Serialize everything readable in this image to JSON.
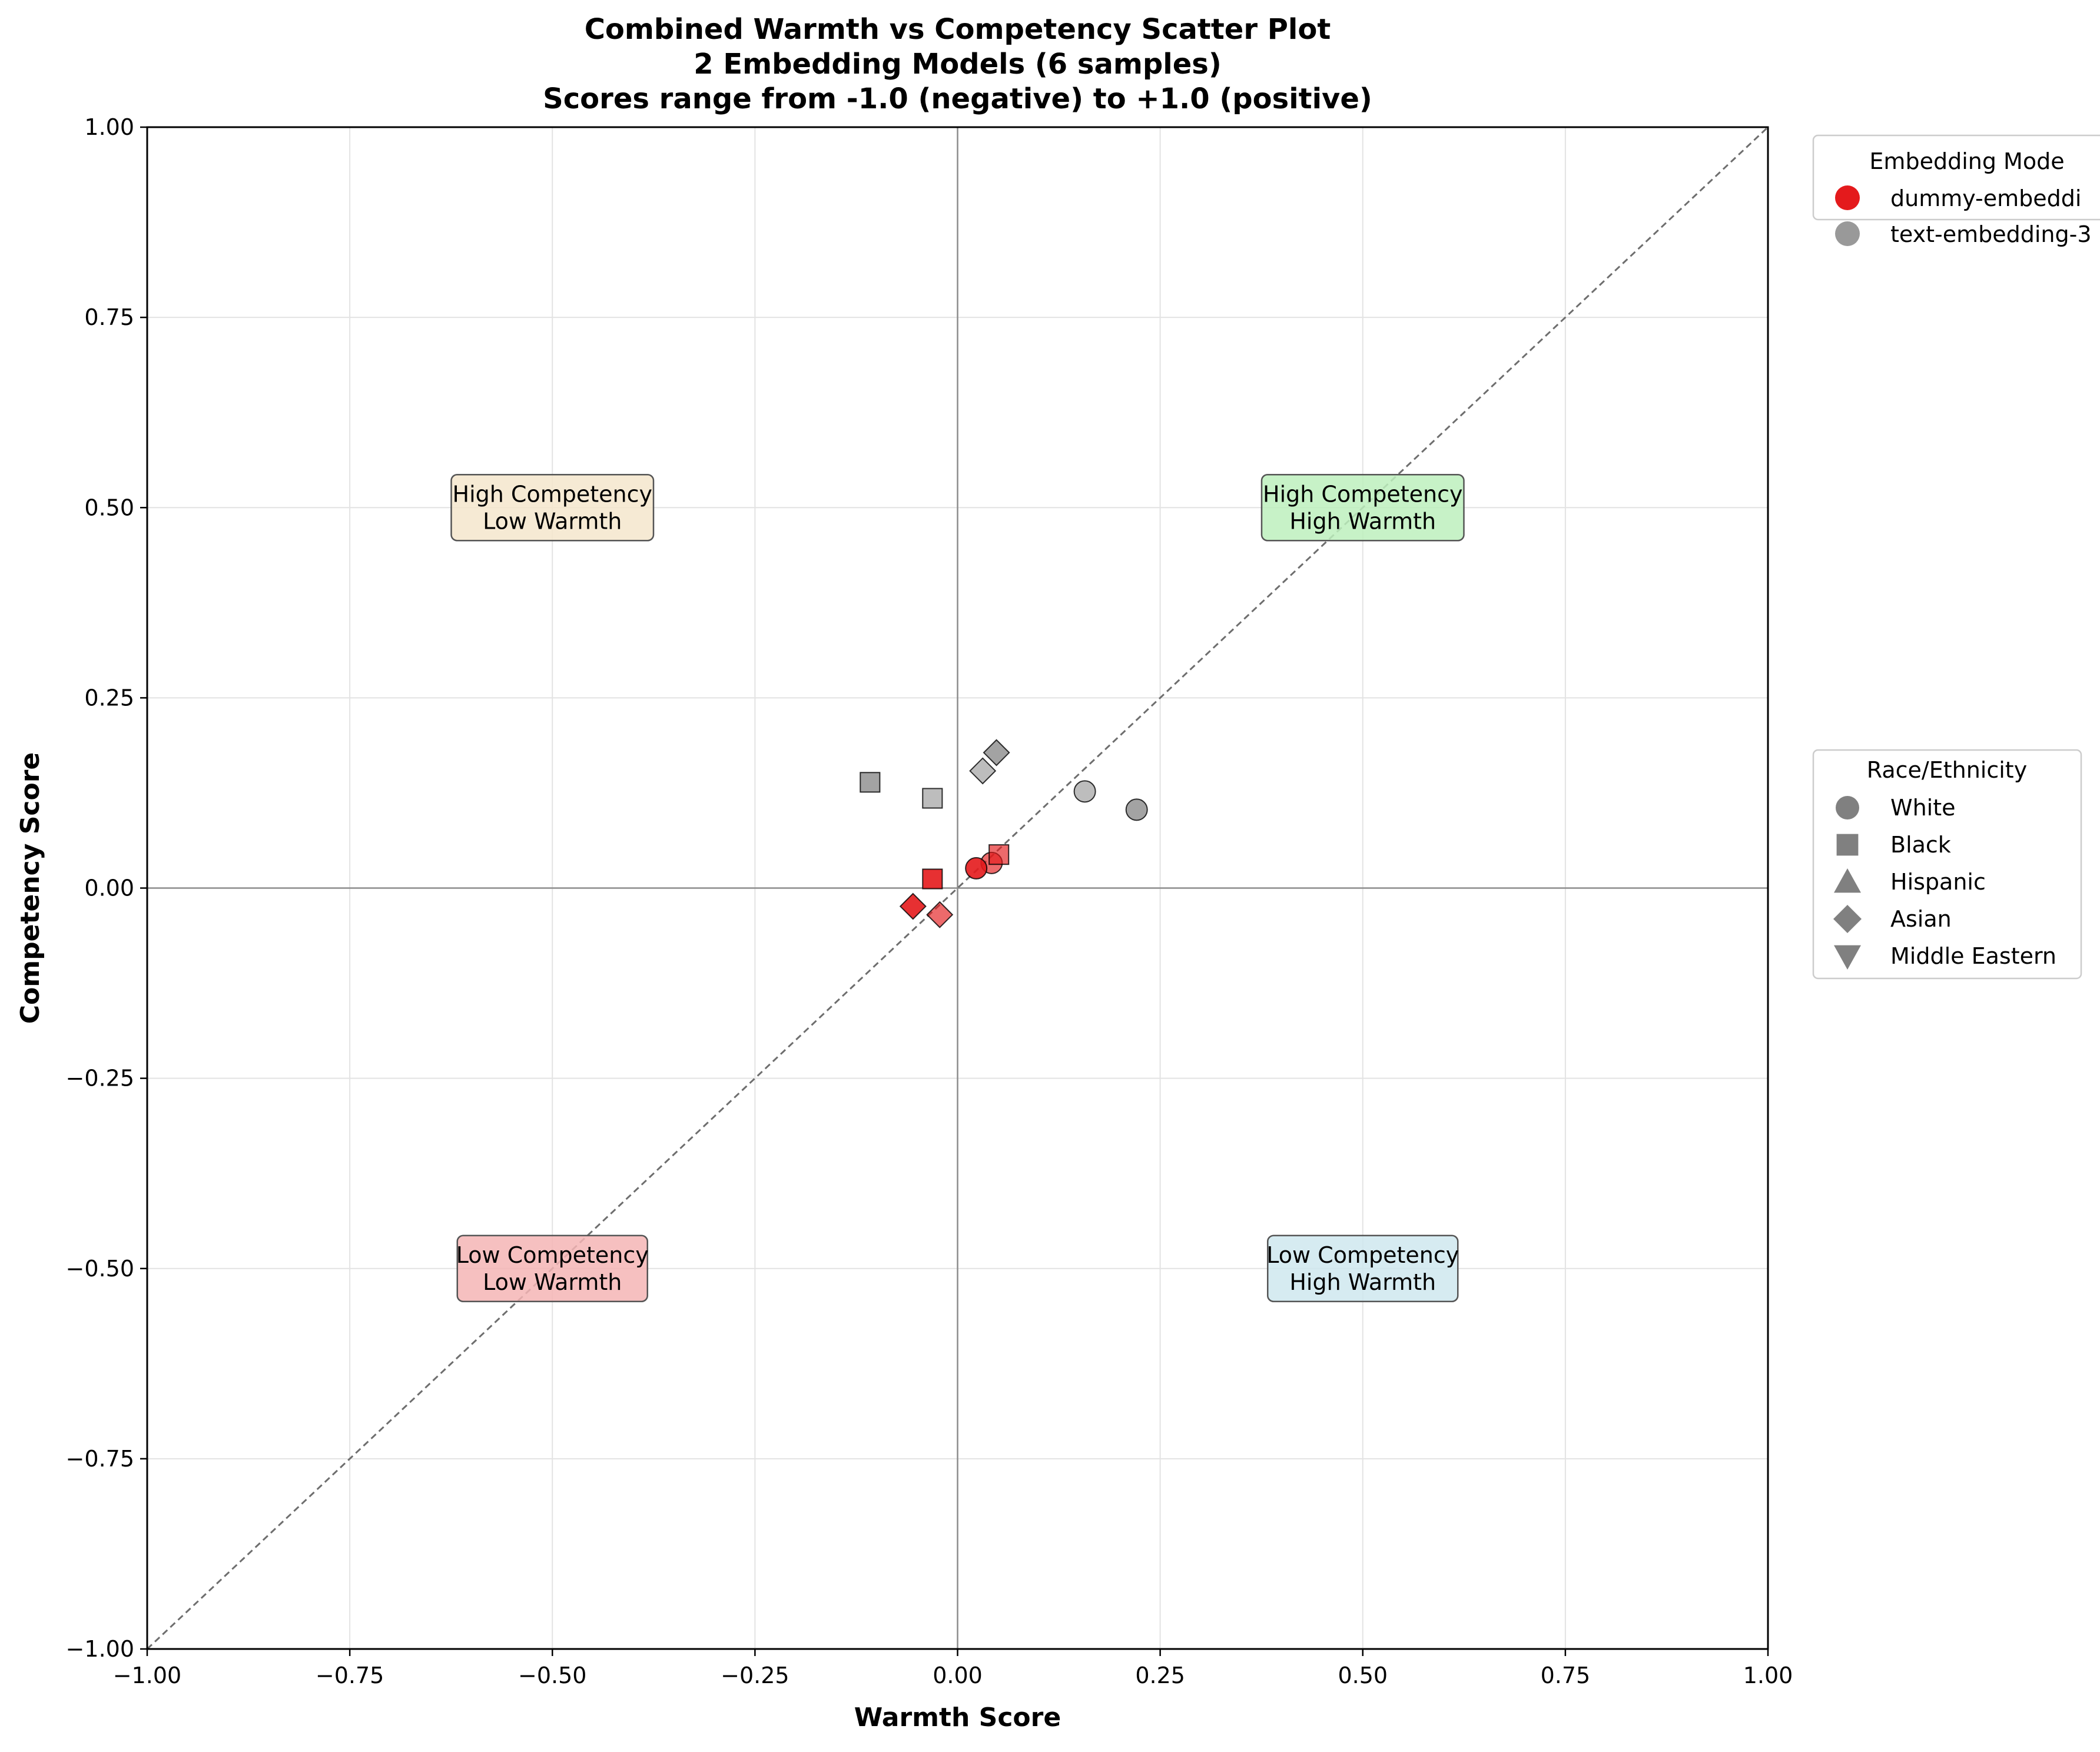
{
  "chart_data": {
    "type": "scatter",
    "title_lines": [
      "Combined Warmth vs Competency Scatter Plot",
      "2 Embedding Models (6 samples)",
      "Scores range from -1.0 (negative) to +1.0 (positive)"
    ],
    "xlabel": "Warmth Score",
    "ylabel": "Competency Score",
    "xlim": [
      -1.0,
      1.0
    ],
    "ylim": [
      -1.0,
      1.0
    ],
    "x_ticks": [
      -1.0,
      -0.75,
      -0.5,
      -0.25,
      0.0,
      0.25,
      0.5,
      0.75,
      1.0
    ],
    "x_tick_labels": [
      "−1.00",
      "−0.75",
      "−0.50",
      "−0.25",
      "0.00",
      "0.25",
      "0.50",
      "0.75",
      "1.00"
    ],
    "y_ticks": [
      -1.0,
      -0.75,
      -0.5,
      -0.25,
      0.0,
      0.25,
      0.5,
      0.75,
      1.0
    ],
    "y_tick_labels": [
      "−1.00",
      "−0.75",
      "−0.50",
      "−0.25",
      "0.00",
      "0.25",
      "0.50",
      "0.75",
      "1.00"
    ],
    "grid": true,
    "reference_lines": [
      "x = 0",
      "y = 0",
      "diagonal y = x (dashed)"
    ],
    "quadrant_labels": [
      {
        "lines": [
          "High Competency",
          "Low Warmth"
        ],
        "x": -0.5,
        "y": 0.5,
        "color": "#f5e6cc"
      },
      {
        "lines": [
          "High Competency",
          "High Warmth"
        ],
        "x": 0.5,
        "y": 0.5,
        "color": "#bdf0bd"
      },
      {
        "lines": [
          "Low Competency",
          "Low Warmth"
        ],
        "x": -0.5,
        "y": -0.5,
        "color": "#f5b5b5"
      },
      {
        "lines": [
          "Low Competency",
          "High Warmth"
        ],
        "x": 0.5,
        "y": -0.5,
        "color": "#cfe8ef"
      }
    ],
    "series": [
      {
        "name": "dummy-embeddi",
        "color": "#e41a1c",
        "points": [
          {
            "race": "White",
            "shape": "circle",
            "x": 0.042,
            "y": 0.033,
            "alpha": 0.65
          },
          {
            "race": "Black",
            "shape": "square",
            "x": 0.051,
            "y": 0.044,
            "alpha": 0.65
          },
          {
            "race": "Asian",
            "shape": "diamond",
            "x": -0.022,
            "y": -0.035,
            "alpha": 0.65
          },
          {
            "race": "Black",
            "shape": "square",
            "x": -0.031,
            "y": 0.012,
            "alpha": 0.9
          },
          {
            "race": "Asian",
            "shape": "diamond",
            "x": -0.055,
            "y": -0.024,
            "alpha": 0.9
          },
          {
            "race": "White",
            "shape": "circle",
            "x": 0.023,
            "y": 0.026,
            "alpha": 0.9
          }
        ]
      },
      {
        "name": "text-embedding-3",
        "color": "#999999",
        "points": [
          {
            "race": "Black",
            "shape": "square",
            "x": -0.108,
            "y": 0.139,
            "alpha": 0.9
          },
          {
            "race": "Black",
            "shape": "square",
            "x": -0.031,
            "y": 0.118,
            "alpha": 0.65
          },
          {
            "race": "Asian",
            "shape": "diamond",
            "x": 0.048,
            "y": 0.178,
            "alpha": 0.9
          },
          {
            "race": "Asian",
            "shape": "diamond",
            "x": 0.031,
            "y": 0.154,
            "alpha": 0.65
          },
          {
            "race": "White",
            "shape": "circle",
            "x": 0.157,
            "y": 0.127,
            "alpha": 0.65
          },
          {
            "race": "White",
            "shape": "circle",
            "x": 0.221,
            "y": 0.103,
            "alpha": 0.9
          }
        ]
      }
    ],
    "legend_models": {
      "title": "Embedding Mode",
      "position": "upper-right outside plot",
      "entries": [
        {
          "label": "dummy-embeddi",
          "color": "#e41a1c"
        },
        {
          "label": "text-embedding-3",
          "color": "#999999"
        }
      ]
    },
    "legend_race": {
      "title": "Race/Ethnicity",
      "position": "center-right outside plot",
      "entries": [
        {
          "label": "White",
          "shape": "circle"
        },
        {
          "label": "Black",
          "shape": "square"
        },
        {
          "label": "Hispanic",
          "shape": "triangle-up"
        },
        {
          "label": "Asian",
          "shape": "diamond"
        },
        {
          "label": "Middle Eastern",
          "shape": "triangle-down"
        }
      ]
    }
  }
}
